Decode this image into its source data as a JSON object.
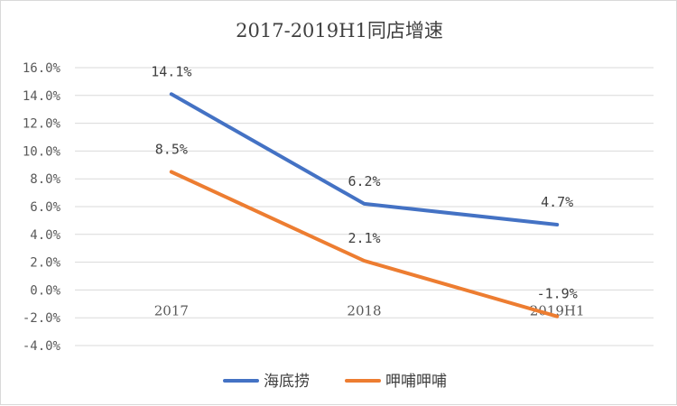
{
  "chart_data": {
    "type": "line",
    "title": "2017-2019H1同店增速",
    "xlabel": "",
    "ylabel": "",
    "categories": [
      "2017",
      "2018",
      "2019H1"
    ],
    "series": [
      {
        "name": "海底捞",
        "values": [
          14.1,
          6.2,
          4.7
        ],
        "labels": [
          "14.1%",
          "6.2%",
          "4.7%"
        ],
        "color": "#4472C4"
      },
      {
        "name": "呷哺呷哺",
        "values": [
          8.5,
          2.1,
          -1.9
        ],
        "labels": [
          "8.5%",
          "2.1%",
          "-1.9%"
        ],
        "color": "#ED7D31"
      }
    ],
    "ylim": [
      -4,
      16
    ],
    "yticks": [
      16,
      14,
      12,
      10,
      8,
      6,
      4,
      2,
      0,
      -2,
      -4
    ],
    "ytick_labels": [
      "16.0%",
      "14.0%",
      "12.0%",
      "10.0%",
      "8.0%",
      "6.0%",
      "4.0%",
      "2.0%",
      "0.0%",
      "-2.0%",
      "-4.0%"
    ],
    "grid": true,
    "gridline_color": "#d9d9d9",
    "legend_position": "bottom"
  }
}
